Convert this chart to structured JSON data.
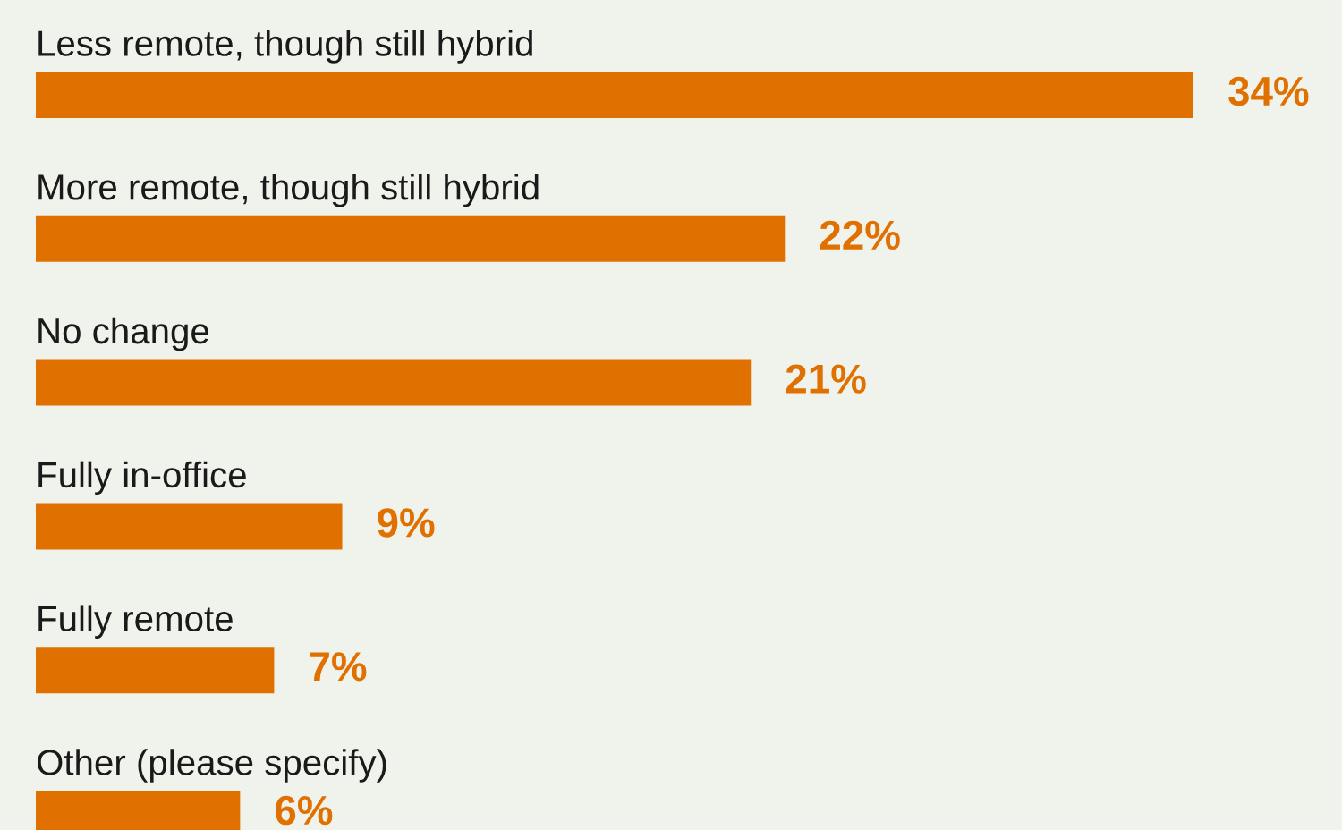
{
  "chart_data": {
    "type": "bar",
    "orientation": "horizontal",
    "categories": [
      "Less remote, though still hybrid",
      "More remote, though still hybrid",
      "No change",
      "Fully in-office",
      "Fully remote",
      "Other (please specify)"
    ],
    "values": [
      34,
      22,
      21,
      9,
      7,
      6
    ],
    "value_labels": [
      "34%",
      "22%",
      "21%",
      "9%",
      "7%",
      "6%"
    ],
    "color": "#e07000"
  }
}
